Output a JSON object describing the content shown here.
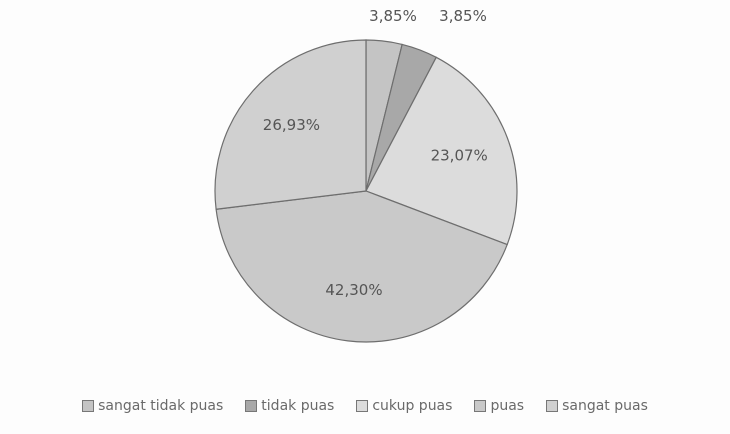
{
  "chart_data": {
    "type": "pie",
    "title": "",
    "categories": [
      "sangat tidak puas",
      "tidak puas",
      "cukup puas",
      "puas",
      "sangat puas"
    ],
    "values": [
      3.85,
      3.85,
      23.07,
      42.3,
      26.93
    ],
    "labels": [
      "3,85%",
      "3,85%",
      "23,07%",
      "42,30%",
      "26,93%"
    ],
    "colors": [
      "#c4c4c4",
      "#a8a8a8",
      "#dcdcdc",
      "#c9c9c9",
      "#d0d0d0"
    ],
    "legend_position": "bottom"
  }
}
